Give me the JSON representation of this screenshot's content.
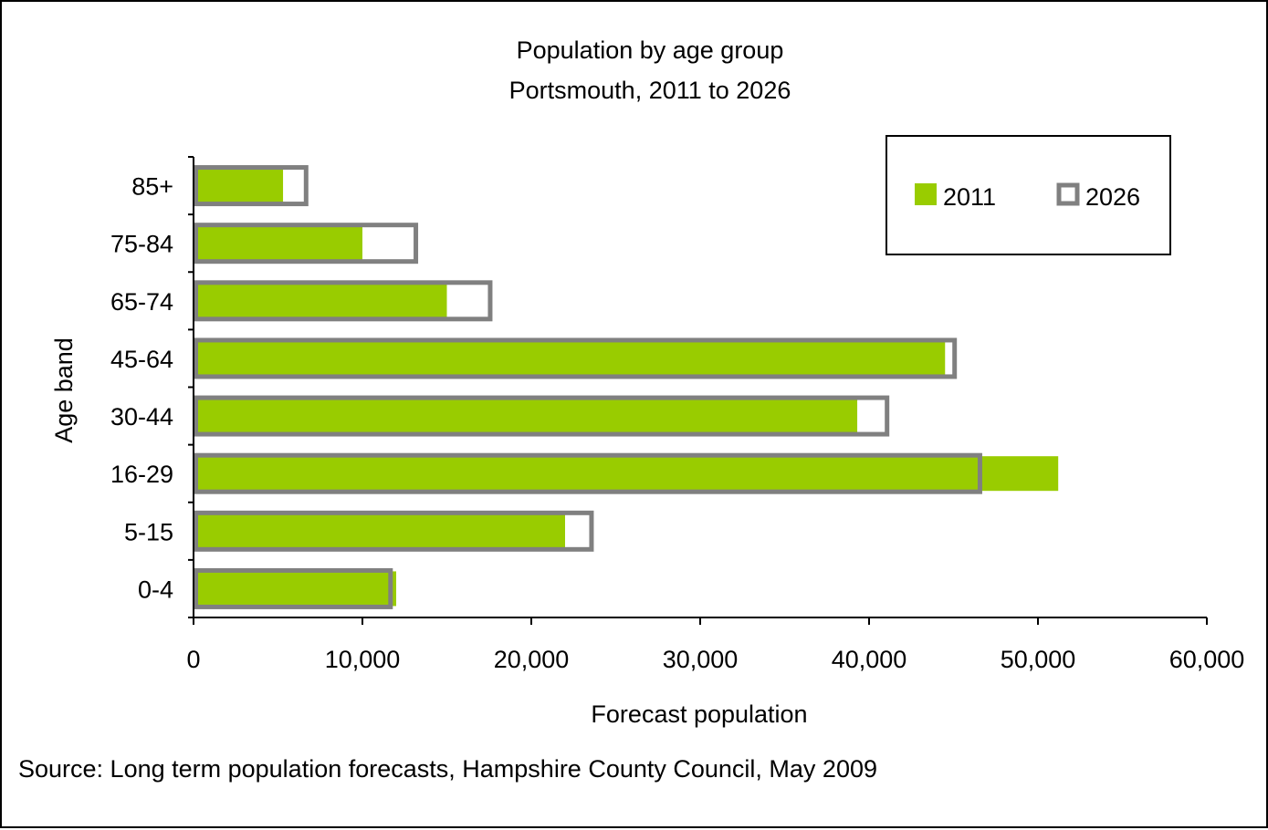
{
  "chart_data": {
    "type": "bar",
    "orientation": "horizontal",
    "title": "Population by age group",
    "subtitle": "Portsmouth, 2011 to 2026",
    "xlabel": "Forecast population",
    "ylabel": "Age band",
    "categories": [
      "0-4",
      "5-15",
      "16-29",
      "30-44",
      "45-64",
      "65-74",
      "75-84",
      "85+"
    ],
    "series": [
      {
        "name": "2011",
        "values": [
          12000,
          22000,
          51200,
          39300,
          44500,
          15000,
          10000,
          5300
        ],
        "style": "filled",
        "color": "#99cc00"
      },
      {
        "name": "2026",
        "values": [
          11800,
          23700,
          46700,
          41200,
          45200,
          17700,
          13300,
          6800
        ],
        "style": "outline",
        "color": "#808080"
      }
    ],
    "xlim": [
      0,
      60000
    ],
    "xticks": [
      0,
      10000,
      20000,
      30000,
      40000,
      50000,
      60000
    ],
    "xtick_labels": [
      "0",
      "10,000",
      "20,000",
      "30,000",
      "40,000",
      "50,000",
      "60,000"
    ],
    "grid": false,
    "legend_position": "top-right"
  },
  "source_note": "Source: Long term population forecasts, Hampshire County Council, May 2009"
}
